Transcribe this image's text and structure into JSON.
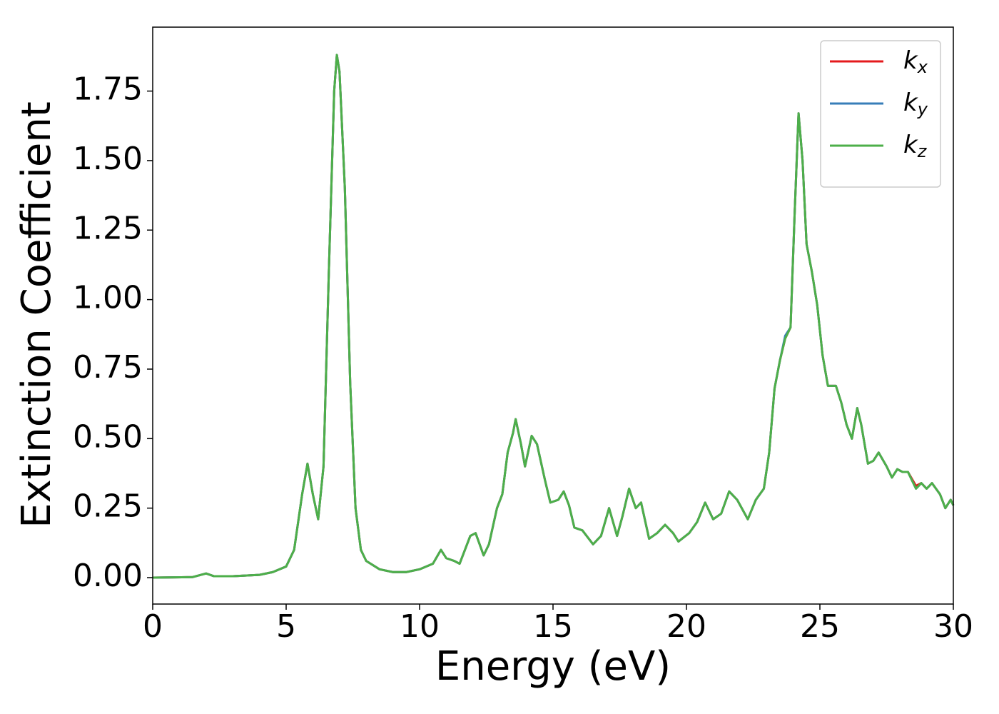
{
  "chart_data": {
    "type": "line",
    "xlabel": "Energy (eV)",
    "ylabel": "Extinction Coefficient",
    "xlim": [
      0,
      30
    ],
    "xticks": [
      0,
      5,
      10,
      15,
      20,
      25,
      30
    ],
    "ylim": [
      -0.095,
      1.98
    ],
    "yticks": [
      {
        "value": 0,
        "label": "0.00"
      },
      0.25,
      {
        "value": 0.5,
        "label": "0.50"
      },
      0.75,
      {
        "value": 1,
        "label": "1.00"
      },
      1.25,
      {
        "value": 1.5,
        "label": "1.50"
      },
      1.75
    ],
    "legend": "upper right",
    "grid": false,
    "x": [
      0,
      1.5,
      2.0,
      2.3,
      3,
      4,
      4.5,
      5,
      5.3,
      5.6,
      5.8,
      6.0,
      6.2,
      6.4,
      6.6,
      6.8,
      6.9,
      7.0,
      7.2,
      7.4,
      7.6,
      7.8,
      8.0,
      8.5,
      9.0,
      9.5,
      10.0,
      10.5,
      10.8,
      11.0,
      11.3,
      11.5,
      11.9,
      12.1,
      12.4,
      12.6,
      12.9,
      13.1,
      13.3,
      13.5,
      13.6,
      13.8,
      13.95,
      14.2,
      14.4,
      14.7,
      14.9,
      15.2,
      15.4,
      15.6,
      15.8,
      16.1,
      16.5,
      16.8,
      17.1,
      17.4,
      17.6,
      17.85,
      18.1,
      18.3,
      18.6,
      18.9,
      19.2,
      19.5,
      19.7,
      20.1,
      20.4,
      20.7,
      21.0,
      21.3,
      21.6,
      21.9,
      22.3,
      22.6,
      22.9,
      23.1,
      23.3,
      23.5,
      23.7,
      23.9,
      24.05,
      24.2,
      24.35,
      24.5,
      24.7,
      24.9,
      25.1,
      25.3,
      25.6,
      25.8,
      26.0,
      26.2,
      26.4,
      26.55,
      26.8,
      27.0,
      27.2,
      27.5,
      27.7,
      27.9,
      28.1,
      28.3,
      28.6,
      28.8,
      29.0,
      29.2,
      29.5,
      29.7,
      29.9,
      30
    ],
    "series": [
      {
        "name": "kx",
        "color": "#e41a1c",
        "values": [
          0,
          0.002,
          0.015,
          0.005,
          0.005,
          0.01,
          0.02,
          0.04,
          0.1,
          0.3,
          0.41,
          0.3,
          0.21,
          0.4,
          1.1,
          1.75,
          1.88,
          1.82,
          1.4,
          0.7,
          0.25,
          0.1,
          0.06,
          0.03,
          0.02,
          0.02,
          0.03,
          0.05,
          0.1,
          0.07,
          0.06,
          0.05,
          0.15,
          0.16,
          0.08,
          0.12,
          0.25,
          0.3,
          0.45,
          0.52,
          0.57,
          0.48,
          0.4,
          0.51,
          0.48,
          0.35,
          0.27,
          0.28,
          0.31,
          0.26,
          0.18,
          0.17,
          0.12,
          0.15,
          0.25,
          0.15,
          0.22,
          0.32,
          0.25,
          0.27,
          0.14,
          0.16,
          0.19,
          0.16,
          0.13,
          0.16,
          0.2,
          0.27,
          0.21,
          0.23,
          0.31,
          0.28,
          0.21,
          0.28,
          0.32,
          0.45,
          0.68,
          0.78,
          0.86,
          0.9,
          1.3,
          1.67,
          1.5,
          1.2,
          1.1,
          0.98,
          0.8,
          0.69,
          0.69,
          0.63,
          0.55,
          0.5,
          0.61,
          0.55,
          0.41,
          0.42,
          0.45,
          0.4,
          0.36,
          0.39,
          0.38,
          0.38,
          0.33,
          0.34,
          0.32,
          0.34,
          0.3,
          0.25,
          0.28,
          0.26
        ]
      },
      {
        "name": "ky",
        "color": "#377eb8",
        "values": [
          0,
          0.002,
          0.015,
          0.005,
          0.005,
          0.01,
          0.02,
          0.04,
          0.1,
          0.3,
          0.41,
          0.3,
          0.21,
          0.4,
          1.1,
          1.75,
          1.88,
          1.82,
          1.4,
          0.7,
          0.25,
          0.1,
          0.06,
          0.03,
          0.02,
          0.02,
          0.03,
          0.05,
          0.1,
          0.07,
          0.06,
          0.05,
          0.15,
          0.16,
          0.08,
          0.12,
          0.25,
          0.3,
          0.45,
          0.52,
          0.57,
          0.48,
          0.4,
          0.51,
          0.48,
          0.35,
          0.27,
          0.28,
          0.31,
          0.26,
          0.18,
          0.17,
          0.12,
          0.15,
          0.25,
          0.15,
          0.22,
          0.32,
          0.25,
          0.27,
          0.14,
          0.16,
          0.19,
          0.16,
          0.13,
          0.16,
          0.2,
          0.27,
          0.21,
          0.23,
          0.31,
          0.28,
          0.21,
          0.28,
          0.32,
          0.45,
          0.68,
          0.78,
          0.87,
          0.9,
          1.3,
          1.67,
          1.5,
          1.2,
          1.1,
          0.98,
          0.8,
          0.69,
          0.69,
          0.63,
          0.55,
          0.5,
          0.61,
          0.55,
          0.41,
          0.42,
          0.45,
          0.4,
          0.36,
          0.39,
          0.38,
          0.38,
          0.32,
          0.34,
          0.32,
          0.34,
          0.3,
          0.25,
          0.28,
          0.26
        ]
      },
      {
        "name": "kz",
        "color": "#4daf4a",
        "values": [
          0,
          0.002,
          0.015,
          0.005,
          0.005,
          0.01,
          0.02,
          0.04,
          0.1,
          0.3,
          0.41,
          0.3,
          0.21,
          0.4,
          1.1,
          1.75,
          1.88,
          1.82,
          1.4,
          0.7,
          0.25,
          0.1,
          0.06,
          0.03,
          0.02,
          0.02,
          0.03,
          0.05,
          0.1,
          0.07,
          0.06,
          0.05,
          0.15,
          0.16,
          0.08,
          0.12,
          0.25,
          0.3,
          0.45,
          0.52,
          0.57,
          0.48,
          0.4,
          0.51,
          0.48,
          0.35,
          0.27,
          0.28,
          0.31,
          0.26,
          0.18,
          0.17,
          0.12,
          0.15,
          0.25,
          0.15,
          0.22,
          0.32,
          0.25,
          0.27,
          0.14,
          0.16,
          0.19,
          0.16,
          0.13,
          0.16,
          0.2,
          0.27,
          0.21,
          0.23,
          0.31,
          0.28,
          0.21,
          0.28,
          0.32,
          0.45,
          0.68,
          0.78,
          0.86,
          0.9,
          1.3,
          1.67,
          1.5,
          1.2,
          1.1,
          0.98,
          0.8,
          0.69,
          0.69,
          0.63,
          0.55,
          0.5,
          0.61,
          0.55,
          0.41,
          0.42,
          0.45,
          0.4,
          0.36,
          0.39,
          0.38,
          0.38,
          0.32,
          0.34,
          0.32,
          0.34,
          0.3,
          0.25,
          0.28,
          0.26
        ]
      }
    ]
  }
}
